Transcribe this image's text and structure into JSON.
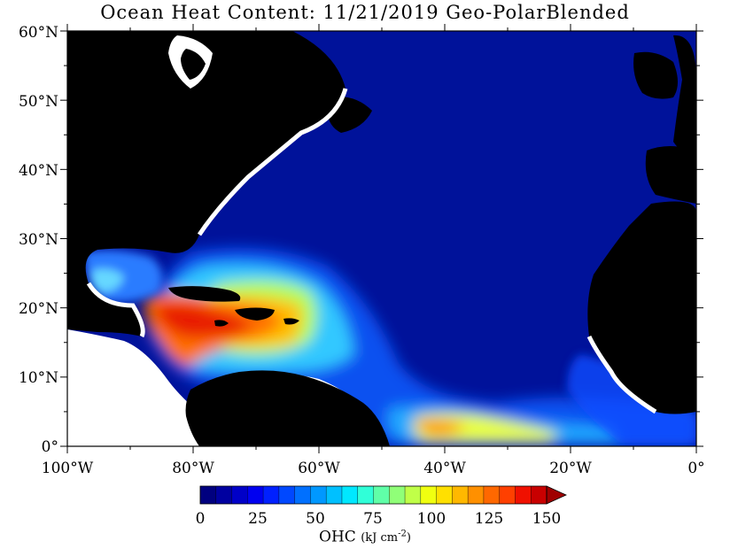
{
  "title": "Ocean Heat Content: 11/21/2019 Geo-PolarBlended",
  "axes": {
    "lat_labels": [
      "60°N",
      "50°N",
      "40°N",
      "30°N",
      "20°N",
      "10°N",
      "0°"
    ],
    "lon_labels": [
      "100°W",
      "80°W",
      "60°W",
      "40°W",
      "20°W",
      "0°"
    ]
  },
  "colorbar": {
    "ticks": [
      "0",
      "25",
      "50",
      "75",
      "100",
      "125",
      "150"
    ],
    "label": "OHC",
    "units_base": "(kJ cm",
    "units_exp": "-2",
    "units_close": ")",
    "min": 0,
    "max": 150,
    "colors": [
      "#00007f",
      "#0000a0",
      "#0000c8",
      "#0000f0",
      "#0020ff",
      "#0048ff",
      "#0070ff",
      "#0098ff",
      "#00c0ff",
      "#00e8ff",
      "#30ffd8",
      "#60ffa8",
      "#90ff78",
      "#c0ff48",
      "#f0ff10",
      "#ffe000",
      "#ffb800",
      "#ff9000",
      "#ff6800",
      "#ff4000",
      "#f01000",
      "#c80000",
      "#a00000"
    ]
  },
  "colors": {
    "land": "#000000",
    "ocean_base": "#00129a",
    "no_data": "#ffffff"
  }
}
